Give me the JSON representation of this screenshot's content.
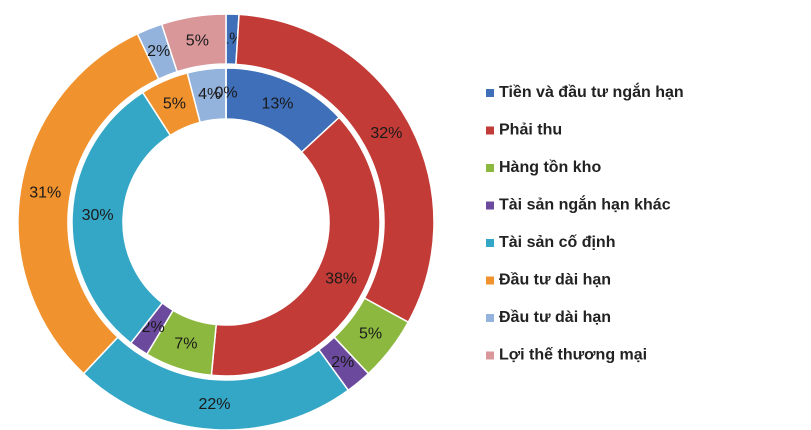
{
  "chart_data": {
    "type": "doughnut",
    "categories": [
      "Tiền và đầu tư ngắn hạn",
      "Phải thu",
      "Hàng tồn kho",
      "Tài sản ngắn hạn khác",
      "Tài sản cố định",
      "Đầu tư dài hạn",
      "Đầu tư dài hạn",
      "Lợi thế thương mại"
    ],
    "colors": [
      "#3e6fb8",
      "#c23b36",
      "#8cb83f",
      "#6b4a9e",
      "#35a7c6",
      "#f0922e",
      "#93b2dc",
      "#d9979a"
    ],
    "series": [
      {
        "values": [
          1,
          32,
          5,
          2,
          22,
          31,
          2,
          5
        ],
        "value_labels": [
          "1%",
          "32%",
          "5%",
          "2%",
          "22%",
          "31%",
          "2%",
          "5%"
        ]
      },
      {
        "values": [
          13,
          38,
          7,
          2,
          30,
          5,
          4,
          0
        ],
        "value_labels": [
          "13%",
          "38%",
          "7%",
          "2%",
          "30%",
          "5%",
          "4%",
          "0%"
        ]
      }
    ],
    "legend": "right"
  }
}
